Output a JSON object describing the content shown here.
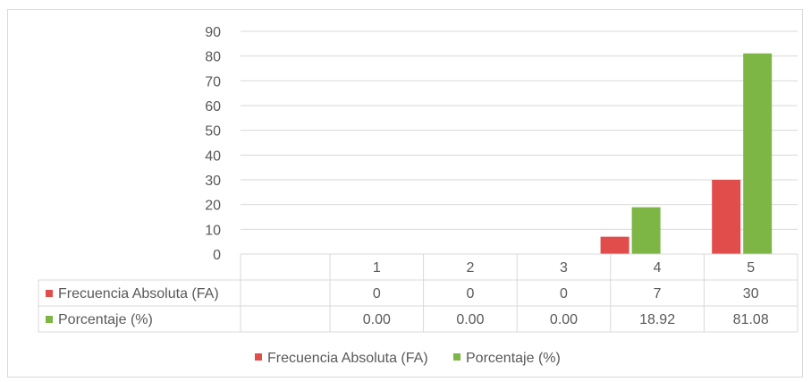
{
  "chart_data": {
    "type": "bar",
    "title": "",
    "xlabel": "",
    "ylabel": "",
    "categories": [
      "1",
      "2",
      "3",
      "4",
      "5"
    ],
    "series": [
      {
        "name": "Frecuencia Absoluta (FA)",
        "values": [
          0,
          0,
          0,
          7,
          30
        ],
        "table_values": [
          "0",
          "0",
          "0",
          "7",
          "30"
        ],
        "color": "#e04d4b"
      },
      {
        "name": "Porcentaje (%)",
        "values": [
          0.0,
          0.0,
          0.0,
          18.92,
          81.08
        ],
        "table_values": [
          "0.00",
          "0.00",
          "0.00",
          "18.92",
          "81.08"
        ],
        "color": "#7db645"
      }
    ],
    "ylim": [
      0,
      90
    ],
    "yticks": [
      "0",
      "10",
      "20",
      "30",
      "40",
      "50",
      "60",
      "70",
      "80",
      "90"
    ],
    "grid": true,
    "data_table": true,
    "legend_position": "bottom"
  }
}
